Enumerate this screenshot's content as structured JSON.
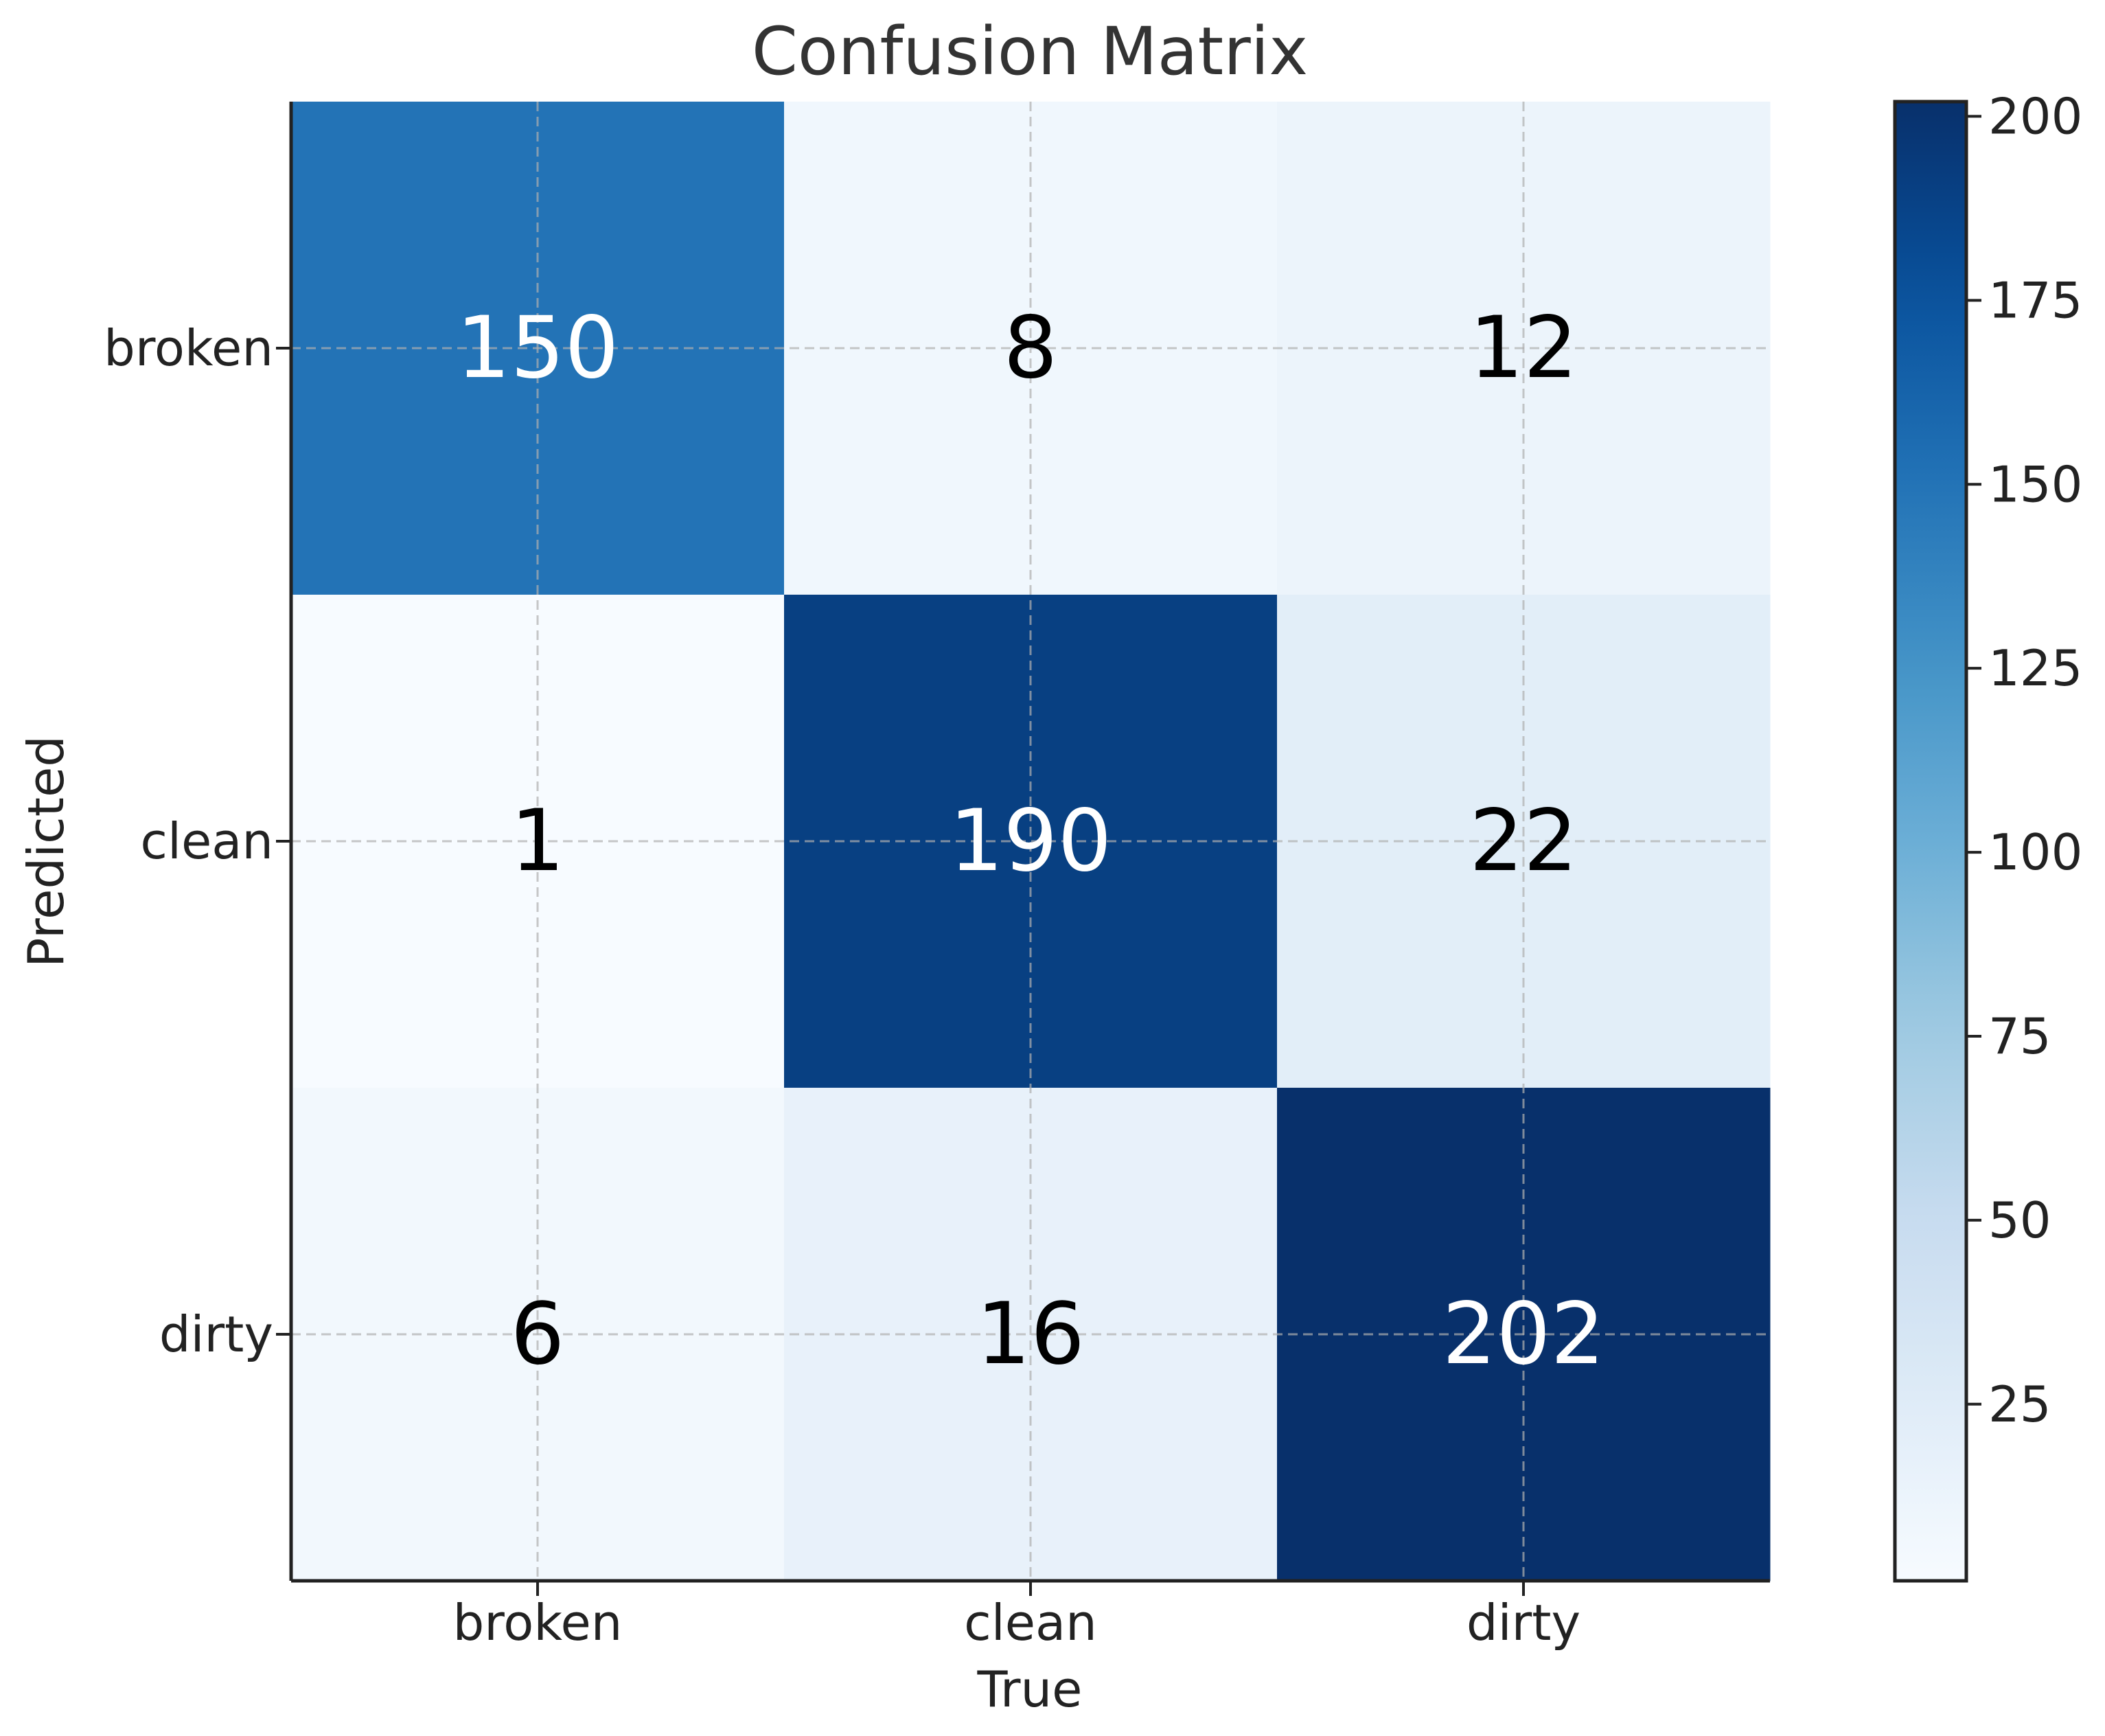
{
  "chart_data": {
    "type": "heatmap",
    "title": "Confusion Matrix",
    "xlabel": "True",
    "ylabel": "Predicted",
    "x_categories": [
      "broken",
      "clean",
      "dirty"
    ],
    "y_categories": [
      "broken",
      "clean",
      "dirty"
    ],
    "matrix": [
      [
        150,
        8,
        12
      ],
      [
        1,
        190,
        22
      ],
      [
        6,
        16,
        202
      ]
    ],
    "colorbar": {
      "range": [
        1,
        202
      ],
      "ticks": [
        25,
        50,
        75,
        100,
        125,
        150,
        175,
        200
      ],
      "colormap": "Blues"
    },
    "grid": true,
    "colors": {
      "low": "#f7fbff",
      "high": "#08306b",
      "text_dark": "#000000",
      "text_light": "#ffffff"
    }
  }
}
